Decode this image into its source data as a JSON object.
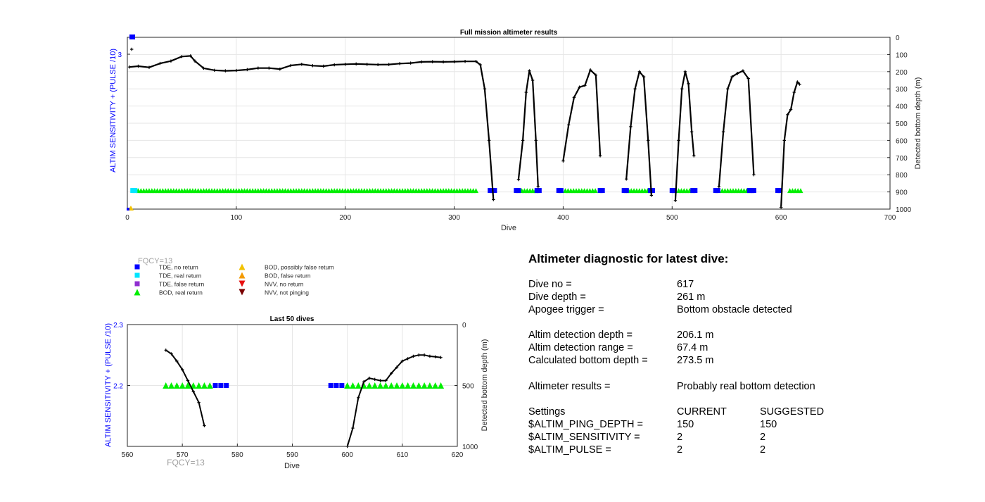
{
  "top": {
    "title": "Full mission altimeter results",
    "xlabel": "Dive",
    "ylabel_left": "ALTIM SENSITIVITY + (PULSE /10)",
    "ylabel_right": "Detected bottom depth (m)",
    "xticks": [
      "0",
      "100",
      "200",
      "300",
      "400",
      "500",
      "600",
      "700"
    ],
    "yticks_left": [
      "3"
    ],
    "yticks_right": [
      "0",
      "100",
      "200",
      "300",
      "400",
      "500",
      "600",
      "700",
      "800",
      "900",
      "1000"
    ]
  },
  "bottom": {
    "title": "Last 50 dives",
    "xlabel": "Dive",
    "ylabel_left": "ALTIM SENSITIVITY + (PULSE /10)",
    "ylabel_right": "Detected bottom depth (m)",
    "xticks": [
      "560",
      "570",
      "580",
      "590",
      "600",
      "610",
      "620"
    ],
    "yticks_left": [
      "2.3",
      "2.2"
    ],
    "yticks_right": [
      "0",
      "500",
      "1000"
    ],
    "fqcy_label": "FQCY=13"
  },
  "legend": {
    "fqcy_label": "FQCY=13",
    "items": [
      {
        "label": "TDE, no return",
        "color": "#0000ff",
        "marker": "square"
      },
      {
        "label": "TDE, real return",
        "color": "#00e5ff",
        "marker": "square"
      },
      {
        "label": "TDE, false return",
        "color": "#8f2fd0",
        "marker": "square"
      },
      {
        "label": "BOD, real return",
        "color": "#00ee00",
        "marker": "triangle-up"
      },
      {
        "label": "BOD, possibly false return",
        "color": "#f2c200",
        "marker": "triangle-up"
      },
      {
        "label": "BOD, false return",
        "color": "#f39a00",
        "marker": "triangle-up"
      },
      {
        "label": "NVV, no return",
        "color": "#e81010",
        "marker": "triangle-down"
      },
      {
        "label": "NVV, not pinging",
        "color": "#7a0000",
        "marker": "triangle-down"
      }
    ]
  },
  "diagnostic": {
    "title": "Altimeter diagnostic for latest dive:",
    "dive_no_label": "Dive no =",
    "dive_no": "617",
    "dive_depth_label": "Dive depth =",
    "dive_depth": "261 m",
    "apogee_label": "Apogee trigger =",
    "apogee": "Bottom obstacle detected",
    "det_depth_label": "Altim detection depth =",
    "det_depth": "206.1 m",
    "det_range_label": "Altim detection range =",
    "det_range": "67.4 m",
    "calc_label": "Calculated bottom depth =",
    "calc": "273.5 m",
    "results_label": "Altimeter results =",
    "results": "Probably real bottom detection",
    "settings_label": "Settings",
    "current_label": "CURRENT",
    "suggested_label": "SUGGESTED",
    "ping_label": "$ALTIM_PING_DEPTH =",
    "ping_current": "150",
    "ping_suggested": "150",
    "sens_label": "$ALTIM_SENSITIVITY =",
    "sens_current": "2",
    "sens_suggested": "2",
    "pulse_label": "$ALTIM_PULSE =",
    "pulse_current": "2",
    "pulse_suggested": "2"
  },
  "chart_data": [
    {
      "type": "line",
      "title": "Full mission altimeter results",
      "xlabel": "Dive",
      "ylabel": "Detected bottom depth (m)",
      "xlim": [
        0,
        700
      ],
      "ylim_right": [
        0,
        1000
      ],
      "right_axis_reversed": true,
      "grid": true,
      "series": [
        {
          "segment": 1,
          "color": "#000000",
          "points": [
            [
              2,
              173
            ],
            [
              10,
              168
            ],
            [
              20,
              175
            ],
            [
              30,
              152
            ],
            [
              40,
              138
            ],
            [
              50,
              112
            ],
            [
              58,
              108
            ],
            [
              62,
              138
            ],
            [
              70,
              180
            ],
            [
              80,
              192
            ],
            [
              90,
              195
            ],
            [
              100,
              193
            ],
            [
              110,
              188
            ],
            [
              120,
              179
            ],
            [
              130,
              179
            ],
            [
              140,
              185
            ],
            [
              150,
              164
            ],
            [
              160,
              157
            ],
            [
              170,
              165
            ],
            [
              180,
              168
            ],
            [
              190,
              160
            ],
            [
              200,
              157
            ],
            [
              210,
              155
            ],
            [
              220,
              157
            ],
            [
              230,
              159
            ],
            [
              240,
              158
            ],
            [
              250,
              153
            ],
            [
              260,
              150
            ],
            [
              270,
              143
            ],
            [
              280,
              142
            ],
            [
              290,
              143
            ],
            [
              300,
              142
            ],
            [
              310,
              140
            ],
            [
              320,
              140
            ],
            [
              324,
              160
            ],
            [
              328,
              300
            ],
            [
              332,
              600
            ],
            [
              336,
              945
            ]
          ]
        },
        {
          "segment": 2,
          "color": "#000000",
          "points": [
            [
              359,
              828
            ],
            [
              363,
              600
            ],
            [
              366,
              320
            ],
            [
              369,
              195
            ],
            [
              372,
              250
            ],
            [
              375,
              600
            ],
            [
              377,
              870
            ]
          ]
        },
        {
          "segment": 3,
          "color": "#000000",
          "points": [
            [
              400,
              720
            ],
            [
              405,
              510
            ],
            [
              410,
              350
            ],
            [
              415,
              290
            ],
            [
              420,
              280
            ],
            [
              425,
              190
            ],
            [
              430,
              220
            ],
            [
              434,
              690
            ]
          ]
        },
        {
          "segment": 4,
          "color": "#000000",
          "points": [
            [
              458,
              825
            ],
            [
              462,
              520
            ],
            [
              466,
              300
            ],
            [
              470,
              200
            ],
            [
              474,
              230
            ],
            [
              478,
              600
            ],
            [
              481,
              920
            ]
          ]
        },
        {
          "segment": 5,
          "color": "#000000",
          "points": [
            [
              503,
              950
            ],
            [
              506,
              600
            ],
            [
              509,
              300
            ],
            [
              512,
              200
            ],
            [
              515,
              270
            ],
            [
              518,
              550
            ],
            [
              520,
              690
            ]
          ]
        },
        {
          "segment": 6,
          "color": "#000000",
          "points": [
            [
              543,
              870
            ],
            [
              547,
              550
            ],
            [
              551,
              300
            ],
            [
              555,
              230
            ],
            [
              560,
              210
            ],
            [
              565,
              195
            ],
            [
              570,
              240
            ],
            [
              575,
              800
            ]
          ]
        },
        {
          "segment": 7,
          "color": "#000000",
          "points": [
            [
              600,
              990
            ],
            [
              603,
              600
            ],
            [
              606,
              450
            ],
            [
              609,
              420
            ],
            [
              612,
              320
            ],
            [
              615,
              260
            ],
            [
              617,
              273
            ]
          ]
        }
      ],
      "markers": {
        "bod_real_return": {
          "color": "#00ee00",
          "y": 900,
          "x_ranges": [
            [
              10,
              320
            ],
            [
              362,
              375
            ],
            [
              402,
              430
            ],
            [
              460,
              478
            ],
            [
              506,
              518
            ],
            [
              546,
              570
            ],
            [
              608,
              618
            ]
          ]
        },
        "tde_real_return": {
          "color": "#00e5ff",
          "y": 900,
          "x_ranges": [
            [
              5,
              8
            ]
          ]
        },
        "tde_no_return": {
          "color": "#0000ff",
          "y": 900,
          "x_ranges": [
            [
              333,
              337
            ],
            [
              357,
              359
            ],
            [
              376,
              378
            ],
            [
              396,
              398
            ],
            [
              434,
              436
            ],
            [
              456,
              458
            ],
            [
              480,
              482
            ],
            [
              500,
              503
            ],
            [
              519,
              521
            ],
            [
              540,
              542
            ],
            [
              571,
              575
            ],
            [
              597,
              600
            ]
          ]
        }
      }
    },
    {
      "type": "line",
      "title": "Last 50 dives",
      "xlabel": "Dive",
      "ylabel": "Detected bottom depth (m)",
      "xlim": [
        560,
        620
      ],
      "ylim_left": [
        2.1,
        2.3
      ],
      "ylim_right": [
        0,
        1000
      ],
      "right_axis_reversed": true,
      "grid": true,
      "series": [
        {
          "segment": "a",
          "color": "#000000",
          "x": [
            567,
            568,
            569,
            570,
            571,
            572,
            573,
            574
          ],
          "y": [
            210,
            240,
            300,
            370,
            460,
            550,
            640,
            830
          ]
        },
        {
          "segment": "b",
          "color": "#000000",
          "x": [
            600,
            601,
            602,
            603,
            604,
            605,
            606,
            607,
            608,
            609,
            610,
            611,
            612,
            613,
            614,
            615,
            616,
            617
          ],
          "y": [
            1000,
            850,
            600,
            470,
            440,
            450,
            460,
            460,
            400,
            350,
            300,
            280,
            260,
            250,
            250,
            260,
            265,
            270
          ]
        }
      ],
      "markers": {
        "bod_real_return": {
          "color": "#00ee00",
          "y": 2.2,
          "x": [
            567,
            568,
            569,
            570,
            571,
            572,
            573,
            574,
            575,
            600,
            601,
            602,
            603,
            604,
            605,
            606,
            607,
            608,
            609,
            610,
            611,
            612,
            613,
            614,
            615,
            616,
            617
          ]
        },
        "tde_no_return": {
          "color": "#0000ff",
          "y": 2.2,
          "x": [
            576,
            577,
            578,
            597,
            598,
            599
          ]
        }
      }
    }
  ]
}
